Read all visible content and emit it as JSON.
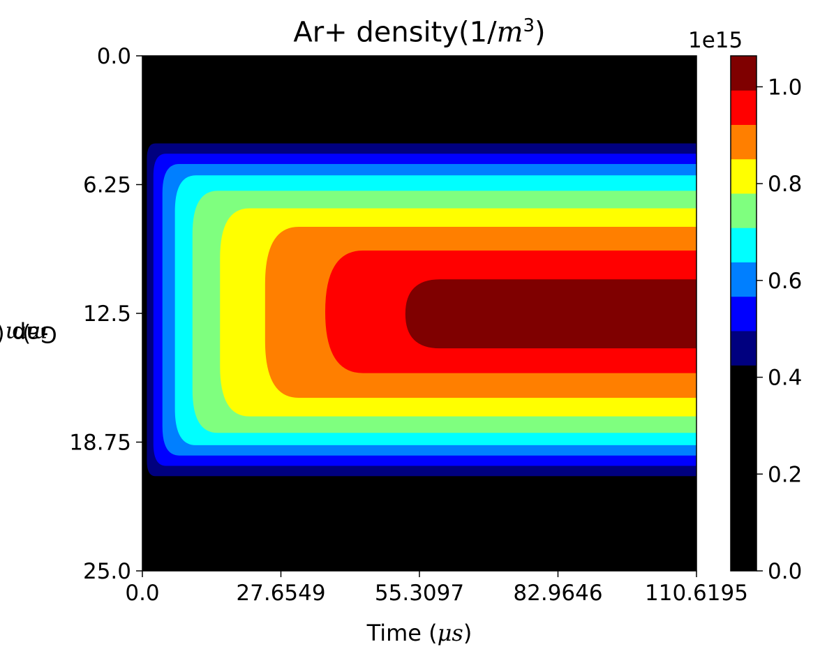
{
  "chart_data": {
    "type": "heatmap",
    "title_prefix": "Ar+ density(1/",
    "title_unit_var": "m",
    "title_unit_exp": "3",
    "title_suffix": ")",
    "xlabel_prefix": "Time (",
    "xlabel_var": "μs",
    "xlabel_suffix": ")",
    "ylabel_prefix": "Gap (",
    "ylabel_var": "mm",
    "ylabel_suffix": ")",
    "x_ticks": [
      "0.0",
      "27.6549",
      "55.3097",
      "82.9646",
      "110.6195"
    ],
    "y_ticks": [
      "0.0",
      "6.25",
      "12.5",
      "18.75",
      "25.0"
    ],
    "xlim": [
      0,
      110.6195
    ],
    "ylim": [
      0,
      25.0
    ],
    "y_inverted": true,
    "colorbar": {
      "multiplier_label": "1e15",
      "ticks": [
        "0.0",
        "0.2",
        "0.4",
        "0.6",
        "0.8",
        "1.0"
      ],
      "tick_values": [
        0.0,
        0.2,
        0.4,
        0.6,
        0.8,
        1.0
      ],
      "range": [
        0.0,
        1.064
      ],
      "colormap": "jet",
      "levels": [
        {
          "from": 0.0,
          "to": 0.425,
          "color": "#000000"
        },
        {
          "from": 0.425,
          "to": 0.496,
          "color": "#00007f"
        },
        {
          "from": 0.496,
          "to": 0.567,
          "color": "#0000ff"
        },
        {
          "from": 0.567,
          "to": 0.638,
          "color": "#007fff"
        },
        {
          "from": 0.638,
          "to": 0.709,
          "color": "#00ffff"
        },
        {
          "from": 0.709,
          "to": 0.78,
          "color": "#7fff7f"
        },
        {
          "from": 0.78,
          "to": 0.851,
          "color": "#ffff00"
        },
        {
          "from": 0.851,
          "to": 0.922,
          "color": "#ff7f00"
        },
        {
          "from": 0.922,
          "to": 0.993,
          "color": "#ff0000"
        },
        {
          "from": 0.993,
          "to": 1.064,
          "color": "#7f0000"
        }
      ]
    },
    "contour_bands": [
      {
        "level": 1,
        "color": "#00007f",
        "t_start": 0.9,
        "y_top": 4.25,
        "y_bottom": 20.4
      },
      {
        "level": 2,
        "color": "#0000ff",
        "t_start": 2.2,
        "y_top": 4.75,
        "y_bottom": 19.9
      },
      {
        "level": 3,
        "color": "#007fff",
        "t_start": 4.0,
        "y_top": 5.25,
        "y_bottom": 19.4
      },
      {
        "level": 4,
        "color": "#00ffff",
        "t_start": 6.5,
        "y_top": 5.8,
        "y_bottom": 18.9
      },
      {
        "level": 5,
        "color": "#7fff7f",
        "t_start": 10.0,
        "y_top": 6.55,
        "y_bottom": 18.3
      },
      {
        "level": 6,
        "color": "#ffff00",
        "t_start": 15.5,
        "y_top": 7.4,
        "y_bottom": 17.5
      },
      {
        "level": 7,
        "color": "#ff7f00",
        "t_start": 24.5,
        "y_top": 8.3,
        "y_bottom": 16.6
      },
      {
        "level": 8,
        "color": "#ff0000",
        "t_start": 36.5,
        "y_top": 9.45,
        "y_bottom": 15.4
      },
      {
        "level": 9,
        "color": "#7f0000",
        "t_start": 52.5,
        "y_top": 10.85,
        "y_bottom": 14.2
      }
    ]
  }
}
